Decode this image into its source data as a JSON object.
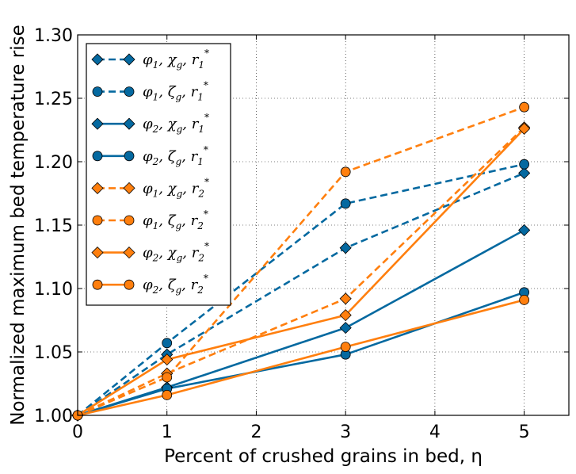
{
  "chart_data": {
    "type": "line",
    "title": "",
    "xlabel": "Percent of crushed grains in bed, η",
    "ylabel": "Normalized maximum bed temperature rise",
    "xlim": [
      0,
      5.5
    ],
    "ylim": [
      1.0,
      1.3
    ],
    "xticks": [
      0,
      1,
      2,
      3,
      4,
      5
    ],
    "xtick_labels": [
      "0",
      "1",
      "2",
      "3",
      "4",
      "5"
    ],
    "yticks": [
      1.0,
      1.05,
      1.1,
      1.15,
      1.2,
      1.25,
      1.3
    ],
    "ytick_labels": [
      "1.00",
      "1.05",
      "1.10",
      "1.15",
      "1.20",
      "1.25",
      "1.30"
    ],
    "grid": true,
    "legend_position": "top-left",
    "x": [
      0,
      1,
      3,
      5
    ],
    "series": [
      {
        "name": "φ1, χg, r1*",
        "color": "#0569a0",
        "dashed": true,
        "marker": "diamond",
        "legend": {
          "phi": "1",
          "mod": "χ",
          "r": "1"
        },
        "values": [
          1.0,
          1.048,
          1.132,
          1.191
        ]
      },
      {
        "name": "φ1, ζg, r1*",
        "color": "#0569a0",
        "dashed": true,
        "marker": "circle",
        "legend": {
          "phi": "1",
          "mod": "ζ",
          "r": "1"
        },
        "values": [
          1.0,
          1.057,
          1.167,
          1.198
        ]
      },
      {
        "name": "φ2, χg, r1*",
        "color": "#0569a0",
        "dashed": false,
        "marker": "diamond",
        "legend": {
          "phi": "2",
          "mod": "χ",
          "r": "1"
        },
        "values": [
          1.0,
          1.022,
          1.069,
          1.146
        ]
      },
      {
        "name": "φ2, ζg, r1*",
        "color": "#0569a0",
        "dashed": false,
        "marker": "circle",
        "legend": {
          "phi": "2",
          "mod": "ζ",
          "r": "1"
        },
        "values": [
          1.0,
          1.021,
          1.048,
          1.097
        ]
      },
      {
        "name": "φ1, χg, r2*",
        "color": "#ff7f0e",
        "dashed": true,
        "marker": "diamond",
        "legend": {
          "phi": "1",
          "mod": "χ",
          "r": "2"
        },
        "values": [
          1.0,
          1.033,
          1.092,
          1.227
        ]
      },
      {
        "name": "φ1, ζg, r2*",
        "color": "#ff7f0e",
        "dashed": true,
        "marker": "circle",
        "legend": {
          "phi": "1",
          "mod": "ζ",
          "r": "2"
        },
        "values": [
          1.0,
          1.03,
          1.192,
          1.243
        ]
      },
      {
        "name": "φ2, χg, r2*",
        "color": "#ff7f0e",
        "dashed": false,
        "marker": "diamond",
        "legend": {
          "phi": "2",
          "mod": "χ",
          "r": "2"
        },
        "values": [
          1.0,
          1.044,
          1.079,
          1.226
        ]
      },
      {
        "name": "φ2, ζg, r2*",
        "color": "#ff7f0e",
        "dashed": false,
        "marker": "circle",
        "legend": {
          "phi": "2",
          "mod": "ζ",
          "r": "2"
        },
        "values": [
          1.0,
          1.016,
          1.054,
          1.091
        ]
      }
    ]
  }
}
